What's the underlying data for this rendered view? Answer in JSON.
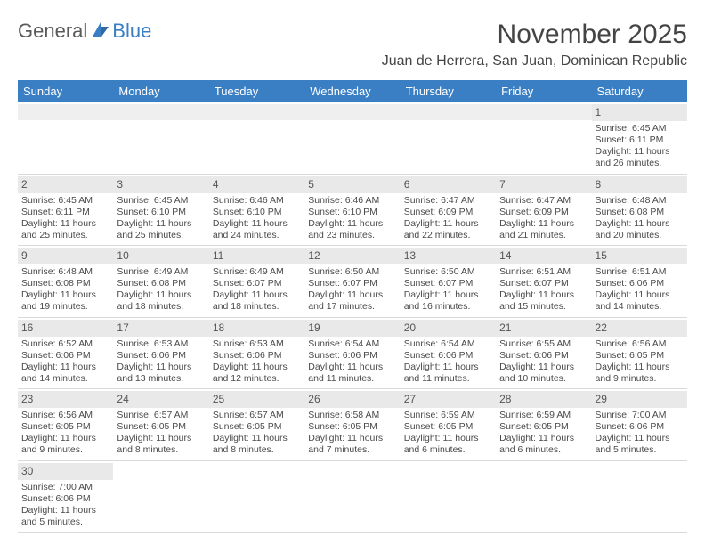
{
  "logo": {
    "word1": "General",
    "word2": "Blue"
  },
  "title": "November 2025",
  "location": "Juan de Herrera, San Juan, Dominican Republic",
  "colors": {
    "header_bg": "#3a7fc4",
    "header_text": "#ffffff",
    "daynum_bg": "#e9e9e9",
    "text": "#4a4a4a",
    "border": "#d9d9d9"
  },
  "dow": [
    "Sunday",
    "Monday",
    "Tuesday",
    "Wednesday",
    "Thursday",
    "Friday",
    "Saturday"
  ],
  "weeks": [
    [
      {
        "blank": true
      },
      {
        "blank": true
      },
      {
        "blank": true
      },
      {
        "blank": true
      },
      {
        "blank": true
      },
      {
        "blank": true
      },
      {
        "n": "1",
        "sr": "Sunrise: 6:45 AM",
        "ss": "Sunset: 6:11 PM",
        "dl": "Daylight: 11 hours and 26 minutes."
      }
    ],
    [
      {
        "n": "2",
        "sr": "Sunrise: 6:45 AM",
        "ss": "Sunset: 6:11 PM",
        "dl": "Daylight: 11 hours and 25 minutes."
      },
      {
        "n": "3",
        "sr": "Sunrise: 6:45 AM",
        "ss": "Sunset: 6:10 PM",
        "dl": "Daylight: 11 hours and 25 minutes."
      },
      {
        "n": "4",
        "sr": "Sunrise: 6:46 AM",
        "ss": "Sunset: 6:10 PM",
        "dl": "Daylight: 11 hours and 24 minutes."
      },
      {
        "n": "5",
        "sr": "Sunrise: 6:46 AM",
        "ss": "Sunset: 6:10 PM",
        "dl": "Daylight: 11 hours and 23 minutes."
      },
      {
        "n": "6",
        "sr": "Sunrise: 6:47 AM",
        "ss": "Sunset: 6:09 PM",
        "dl": "Daylight: 11 hours and 22 minutes."
      },
      {
        "n": "7",
        "sr": "Sunrise: 6:47 AM",
        "ss": "Sunset: 6:09 PM",
        "dl": "Daylight: 11 hours and 21 minutes."
      },
      {
        "n": "8",
        "sr": "Sunrise: 6:48 AM",
        "ss": "Sunset: 6:08 PM",
        "dl": "Daylight: 11 hours and 20 minutes."
      }
    ],
    [
      {
        "n": "9",
        "sr": "Sunrise: 6:48 AM",
        "ss": "Sunset: 6:08 PM",
        "dl": "Daylight: 11 hours and 19 minutes."
      },
      {
        "n": "10",
        "sr": "Sunrise: 6:49 AM",
        "ss": "Sunset: 6:08 PM",
        "dl": "Daylight: 11 hours and 18 minutes."
      },
      {
        "n": "11",
        "sr": "Sunrise: 6:49 AM",
        "ss": "Sunset: 6:07 PM",
        "dl": "Daylight: 11 hours and 18 minutes."
      },
      {
        "n": "12",
        "sr": "Sunrise: 6:50 AM",
        "ss": "Sunset: 6:07 PM",
        "dl": "Daylight: 11 hours and 17 minutes."
      },
      {
        "n": "13",
        "sr": "Sunrise: 6:50 AM",
        "ss": "Sunset: 6:07 PM",
        "dl": "Daylight: 11 hours and 16 minutes."
      },
      {
        "n": "14",
        "sr": "Sunrise: 6:51 AM",
        "ss": "Sunset: 6:07 PM",
        "dl": "Daylight: 11 hours and 15 minutes."
      },
      {
        "n": "15",
        "sr": "Sunrise: 6:51 AM",
        "ss": "Sunset: 6:06 PM",
        "dl": "Daylight: 11 hours and 14 minutes."
      }
    ],
    [
      {
        "n": "16",
        "sr": "Sunrise: 6:52 AM",
        "ss": "Sunset: 6:06 PM",
        "dl": "Daylight: 11 hours and 14 minutes."
      },
      {
        "n": "17",
        "sr": "Sunrise: 6:53 AM",
        "ss": "Sunset: 6:06 PM",
        "dl": "Daylight: 11 hours and 13 minutes."
      },
      {
        "n": "18",
        "sr": "Sunrise: 6:53 AM",
        "ss": "Sunset: 6:06 PM",
        "dl": "Daylight: 11 hours and 12 minutes."
      },
      {
        "n": "19",
        "sr": "Sunrise: 6:54 AM",
        "ss": "Sunset: 6:06 PM",
        "dl": "Daylight: 11 hours and 11 minutes."
      },
      {
        "n": "20",
        "sr": "Sunrise: 6:54 AM",
        "ss": "Sunset: 6:06 PM",
        "dl": "Daylight: 11 hours and 11 minutes."
      },
      {
        "n": "21",
        "sr": "Sunrise: 6:55 AM",
        "ss": "Sunset: 6:06 PM",
        "dl": "Daylight: 11 hours and 10 minutes."
      },
      {
        "n": "22",
        "sr": "Sunrise: 6:56 AM",
        "ss": "Sunset: 6:05 PM",
        "dl": "Daylight: 11 hours and 9 minutes."
      }
    ],
    [
      {
        "n": "23",
        "sr": "Sunrise: 6:56 AM",
        "ss": "Sunset: 6:05 PM",
        "dl": "Daylight: 11 hours and 9 minutes."
      },
      {
        "n": "24",
        "sr": "Sunrise: 6:57 AM",
        "ss": "Sunset: 6:05 PM",
        "dl": "Daylight: 11 hours and 8 minutes."
      },
      {
        "n": "25",
        "sr": "Sunrise: 6:57 AM",
        "ss": "Sunset: 6:05 PM",
        "dl": "Daylight: 11 hours and 8 minutes."
      },
      {
        "n": "26",
        "sr": "Sunrise: 6:58 AM",
        "ss": "Sunset: 6:05 PM",
        "dl": "Daylight: 11 hours and 7 minutes."
      },
      {
        "n": "27",
        "sr": "Sunrise: 6:59 AM",
        "ss": "Sunset: 6:05 PM",
        "dl": "Daylight: 11 hours and 6 minutes."
      },
      {
        "n": "28",
        "sr": "Sunrise: 6:59 AM",
        "ss": "Sunset: 6:05 PM",
        "dl": "Daylight: 11 hours and 6 minutes."
      },
      {
        "n": "29",
        "sr": "Sunrise: 7:00 AM",
        "ss": "Sunset: 6:06 PM",
        "dl": "Daylight: 11 hours and 5 minutes."
      }
    ],
    [
      {
        "n": "30",
        "sr": "Sunrise: 7:00 AM",
        "ss": "Sunset: 6:06 PM",
        "dl": "Daylight: 11 hours and 5 minutes."
      },
      {
        "blank": true
      },
      {
        "blank": true
      },
      {
        "blank": true
      },
      {
        "blank": true
      },
      {
        "blank": true
      },
      {
        "blank": true
      }
    ]
  ]
}
